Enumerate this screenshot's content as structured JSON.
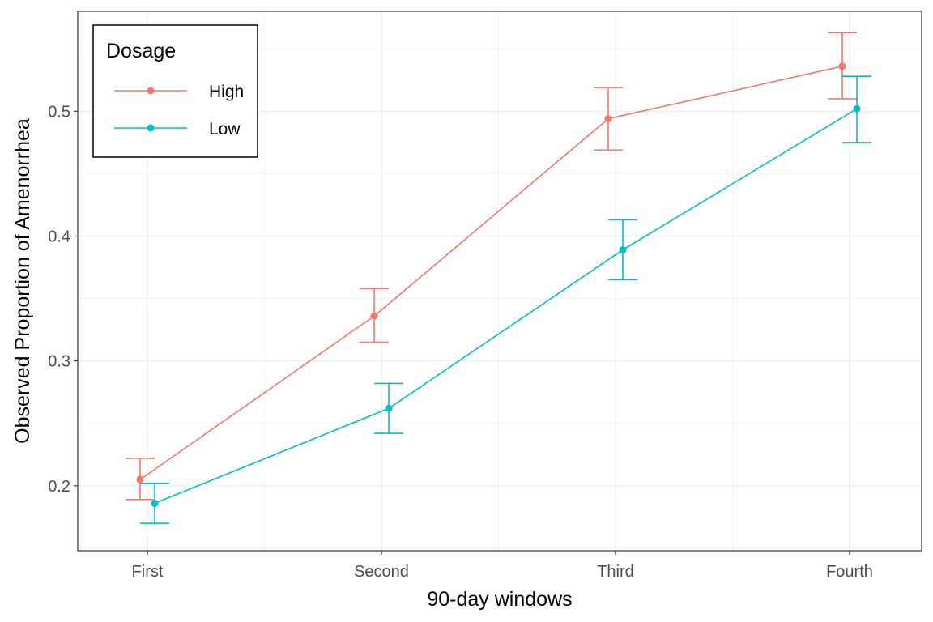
{
  "chart_data": {
    "type": "line",
    "xlabel": "90-day windows",
    "ylabel": "Observed Proportion of Amenorrhea",
    "categories": [
      "First",
      "Second",
      "Third",
      "Fourth"
    ],
    "ylim": [
      0.148,
      0.58
    ],
    "yticks": [
      0.2,
      0.3,
      0.4,
      0.5
    ],
    "grid": true,
    "legend": {
      "title": "Dosage",
      "position": "top-left"
    },
    "series": [
      {
        "name": "High",
        "color": "#F8766D",
        "values": [
          0.205,
          0.336,
          0.494,
          0.536
        ],
        "lower": [
          0.189,
          0.315,
          0.469,
          0.51
        ],
        "upper": [
          0.222,
          0.358,
          0.519,
          0.563
        ]
      },
      {
        "name": "Low",
        "color": "#00BFC4",
        "values": [
          0.186,
          0.262,
          0.389,
          0.502
        ],
        "lower": [
          0.17,
          0.242,
          0.365,
          0.475
        ],
        "upper": [
          0.202,
          0.282,
          0.413,
          0.528
        ]
      }
    ]
  }
}
